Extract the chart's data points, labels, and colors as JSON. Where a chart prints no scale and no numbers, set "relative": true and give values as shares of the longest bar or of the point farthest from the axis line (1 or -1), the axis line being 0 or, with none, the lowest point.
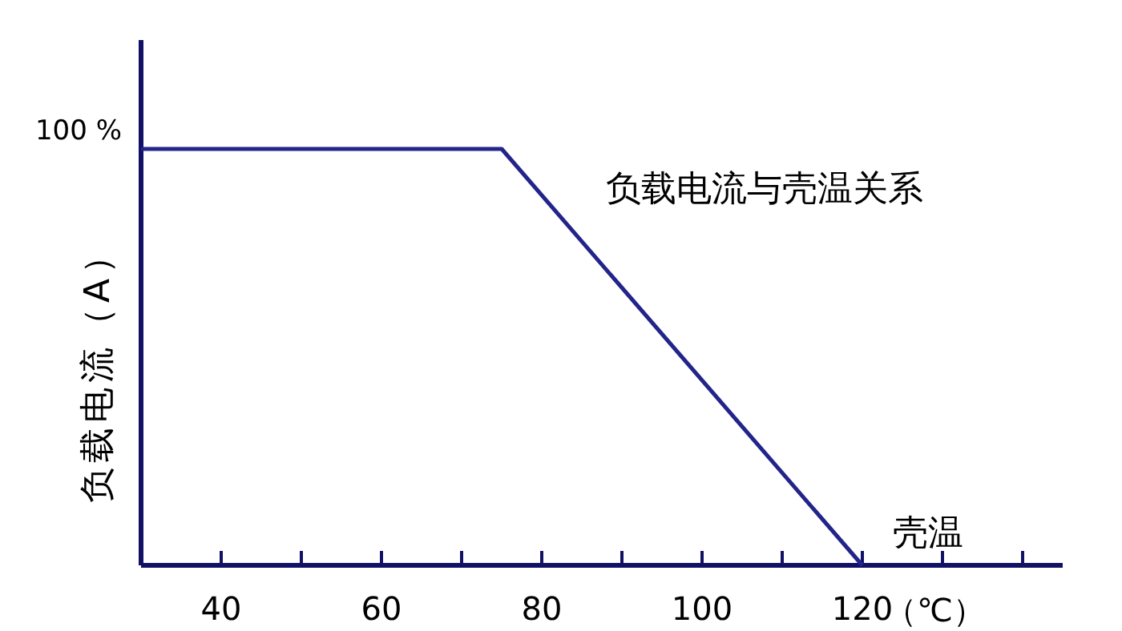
{
  "chart_data": {
    "type": "line",
    "title": "负载电流与壳温关系",
    "xlabel": "壳温",
    "ylabel": "负载电流（A）",
    "relative": true,
    "annotations": [
      {
        "text": "100 %",
        "x": 30,
        "y": 1
      },
      "（℃）"
    ],
    "x": [
      30,
      75,
      120
    ],
    "series": [
      {
        "color": "#23248a",
        "values": [
          1,
          1,
          0
        ]
      }
    ],
    "xlim": [
      30,
      145
    ],
    "xticks": [
      40,
      {
        "value": 50,
        "label": null
      },
      60,
      {
        "value": 70,
        "label": null
      },
      80,
      {
        "value": 90,
        "label": null
      },
      100,
      {
        "value": 110,
        "label": null
      },
      120,
      {
        "value": 130,
        "label": null
      },
      {
        "value": 140,
        "label": null
      }
    ],
    "grid": false,
    "line_style": "solid"
  }
}
